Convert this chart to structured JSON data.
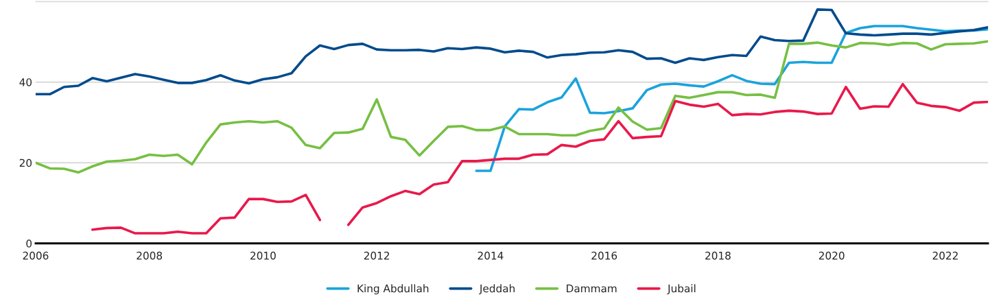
{
  "chart_data": {
    "type": "line",
    "x": [
      2006,
      2006.25,
      2006.5,
      2006.75,
      2007,
      2007.25,
      2007.5,
      2007.75,
      2008,
      2008.25,
      2008.5,
      2008.75,
      2009,
      2009.25,
      2009.5,
      2009.75,
      2010,
      2010.25,
      2010.5,
      2010.75,
      2011,
      2011.25,
      2011.5,
      2011.75,
      2012,
      2012.25,
      2012.5,
      2012.75,
      2013,
      2013.25,
      2013.5,
      2013.75,
      2014,
      2014.25,
      2014.5,
      2014.75,
      2015,
      2015.25,
      2015.5,
      2015.75,
      2016,
      2016.25,
      2016.5,
      2016.75,
      2017,
      2017.25,
      2017.5,
      2017.75,
      2018,
      2018.25,
      2018.5,
      2018.75,
      2019,
      2019.25,
      2019.5,
      2019.75,
      2020,
      2020.25,
      2020.5,
      2020.75,
      2021,
      2021.25,
      2021.5,
      2021.75,
      2022,
      2022.25,
      2022.5,
      2022.75
    ],
    "series": [
      {
        "name": "King Abdullah",
        "color": "#1aa3dc",
        "values": [
          null,
          null,
          null,
          null,
          null,
          null,
          null,
          null,
          null,
          null,
          null,
          null,
          null,
          null,
          null,
          null,
          null,
          null,
          null,
          null,
          null,
          null,
          null,
          null,
          null,
          null,
          null,
          null,
          null,
          null,
          null,
          18,
          18,
          29,
          33.3,
          33.2,
          35,
          36.2,
          40.9,
          32.4,
          32.3,
          32.8,
          33.5,
          38,
          39.4,
          39.6,
          39.2,
          38.9,
          40.2,
          41.7,
          40.3,
          39.6,
          39.5,
          44.8,
          45,
          44.8,
          44.8,
          52.2,
          53.4,
          53.9,
          53.9,
          53.9,
          53.4,
          53,
          52.6,
          52.8,
          52.8,
          53.1
        ]
      },
      {
        "name": "Jeddah",
        "color": "#004b8d",
        "values": [
          37,
          37,
          38.8,
          39.1,
          41,
          40.2,
          41.1,
          42,
          41.4,
          40.6,
          39.8,
          39.8,
          40.5,
          41.7,
          40.4,
          39.7,
          40.7,
          41.2,
          42.2,
          46.4,
          49.1,
          48.2,
          49.2,
          49.5,
          48.1,
          47.9,
          47.9,
          48,
          47.6,
          48.4,
          48.2,
          48.6,
          48.3,
          47.4,
          47.8,
          47.5,
          46.1,
          46.7,
          46.9,
          47.3,
          47.4,
          47.9,
          47.5,
          45.8,
          45.9,
          44.8,
          45.9,
          45.5,
          46.2,
          46.7,
          46.5,
          51.3,
          50.4,
          50.2,
          50.3,
          58,
          57.9,
          52.1,
          51.8,
          51.6,
          51.8,
          52,
          52,
          51.8,
          52.2,
          52.6,
          52.9,
          53.6
        ]
      },
      {
        "name": "Dammam",
        "color": "#77bf43",
        "values": [
          20,
          18.6,
          18.5,
          17.6,
          19.1,
          20.3,
          20.5,
          20.9,
          22,
          21.7,
          22,
          19.6,
          25,
          29.5,
          30,
          30.3,
          30,
          30.3,
          28.7,
          24.4,
          23.6,
          27.4,
          27.5,
          28.4,
          35.7,
          26.4,
          25.7,
          21.8,
          25.4,
          28.9,
          29.1,
          28.1,
          28.1,
          29,
          27.1,
          27.1,
          27.1,
          26.8,
          26.8,
          27.9,
          28.5,
          33.7,
          30.2,
          28.2,
          28.6,
          36.6,
          36.1,
          36.8,
          37.5,
          37.5,
          36.8,
          36.9,
          36.1,
          49.5,
          49.5,
          49.8,
          49.1,
          48.6,
          49.7,
          49.6,
          49.2,
          49.7,
          49.6,
          48.1,
          49.4,
          49.5,
          49.6,
          50.1
        ]
      },
      {
        "name": "Jubail",
        "color": "#e8194b",
        "values": [
          null,
          null,
          null,
          null,
          3.4,
          3.8,
          3.9,
          2.5,
          2.5,
          2.5,
          2.9,
          2.5,
          2.5,
          6.2,
          6.4,
          11,
          11,
          10.3,
          10.4,
          12,
          5.8,
          null,
          4.6,
          8.9,
          10,
          11.7,
          13,
          12.2,
          14.6,
          15.2,
          20.4,
          20.4,
          20.7,
          21,
          21,
          22,
          22.1,
          24.4,
          24,
          25.4,
          25.8,
          30.3,
          26.1,
          26.4,
          26.6,
          35.3,
          34.4,
          33.9,
          34.6,
          31.8,
          32.1,
          32,
          32.6,
          32.9,
          32.7,
          32.1,
          32.2,
          38.8,
          33.4,
          34,
          33.9,
          39.5,
          34.9,
          34.1,
          33.8,
          32.9,
          34.9,
          35.1
        ]
      }
    ],
    "xlim": [
      2006,
      2022.75
    ],
    "xticks": [
      2006,
      2008,
      2010,
      2012,
      2014,
      2016,
      2018,
      2020,
      2022
    ],
    "ylim": [
      0,
      60
    ],
    "yticks": [
      0,
      20,
      40,
      {
        "value": 60,
        "label": null
      }
    ],
    "grid": "y",
    "legend": "bottom",
    "marker": "none",
    "line_style": "solid"
  }
}
